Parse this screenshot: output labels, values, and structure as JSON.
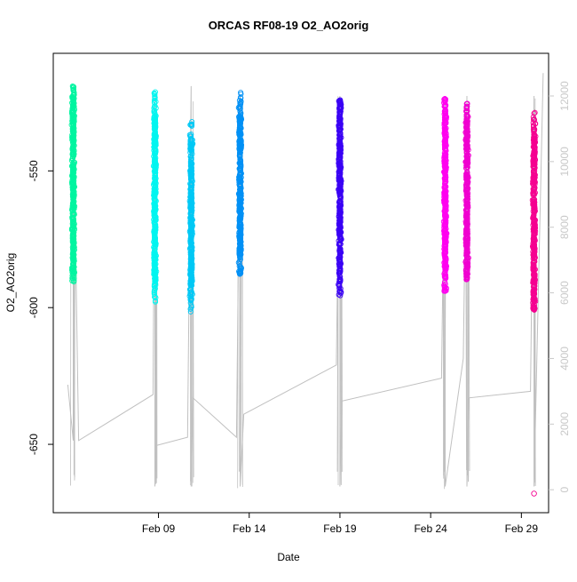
{
  "chart_data": {
    "type": "scatter",
    "title": "ORCAS RF08-19 O2_AO2orig",
    "xlabel": "Date",
    "ylabel": "O2_AO2orig",
    "x_ticks": [
      "Feb 09",
      "Feb 14",
      "Feb 19",
      "Feb 24",
      "Feb 29"
    ],
    "x_tick_days": [
      9,
      14,
      19,
      24,
      29
    ],
    "xlim_days": [
      3.2,
      30.5
    ],
    "y_ticks": [
      -550,
      -600,
      -650
    ],
    "ylim": [
      -675,
      -507
    ],
    "y2_ticks": [
      0,
      2000,
      4000,
      6000,
      8000,
      10000,
      12000
    ],
    "y2lim": [
      -700,
      13300
    ],
    "axis_colors": {
      "y": "#000000",
      "y2": "#c8c8c8",
      "line": "#c0c0c0"
    },
    "series": [
      {
        "color": "#00f5a0",
        "day": 4.3,
        "o2_top": -519,
        "o2_core_top": -525,
        "o2_core_bottom": -585,
        "o2_bottom": -591
      },
      {
        "color": "#00f5f0",
        "day": 8.8,
        "o2_top": -521,
        "o2_core_top": -530,
        "o2_core_bottom": -590,
        "o2_bottom": -598
      },
      {
        "color": "#00c8f5",
        "day": 10.8,
        "o2_top": -532,
        "o2_core_top": -540,
        "o2_core_bottom": -592,
        "o2_bottom": -602
      },
      {
        "color": "#0090f5",
        "day": 13.5,
        "o2_top": -521,
        "o2_core_top": -530,
        "o2_core_bottom": -582,
        "o2_bottom": -588
      },
      {
        "color": "#3a00f5",
        "day": 19.0,
        "o2_top": -524,
        "o2_core_top": -528,
        "o2_core_bottom": -588,
        "o2_bottom": -596
      },
      {
        "color": "#ff00f0",
        "day": 24.8,
        "o2_top": -523,
        "o2_core_top": -530,
        "o2_core_bottom": -585,
        "o2_bottom": -594
      },
      {
        "color": "#f000d0",
        "day": 26.0,
        "o2_top": -525,
        "o2_core_top": -532,
        "o2_core_bottom": -583,
        "o2_bottom": -590
      },
      {
        "color": "#f50090",
        "day": 29.7,
        "o2_top": -528,
        "o2_core_top": -535,
        "o2_core_bottom": -597,
        "o2_bottom": -601
      }
    ],
    "outlier_points": [
      {
        "day": 29.7,
        "o2": -668,
        "color": "#f50090"
      }
    ],
    "secondary_line_days": [
      4.0,
      4.3,
      4.3,
      4.6,
      8.7,
      8.8,
      8.8,
      8.9,
      10.6,
      10.8,
      10.8,
      10.9,
      13.3,
      13.5,
      13.5,
      13.7,
      18.8,
      19.0,
      19.0,
      19.1,
      24.6,
      24.8,
      24.8,
      25.8,
      26.0,
      26.0,
      26.1,
      29.5,
      29.7,
      29.7,
      30.2
    ],
    "secondary_line_values": [
      3200,
      1500,
      12000,
      1500,
      2900,
      12000,
      100,
      1350,
      1600,
      12300,
      100,
      2800,
      1600,
      12000,
      100,
      2300,
      3800,
      12000,
      100,
      2700,
      3400,
      12000,
      100,
      4000,
      12000,
      100,
      2800,
      3000,
      12000,
      100,
      12700
    ]
  }
}
